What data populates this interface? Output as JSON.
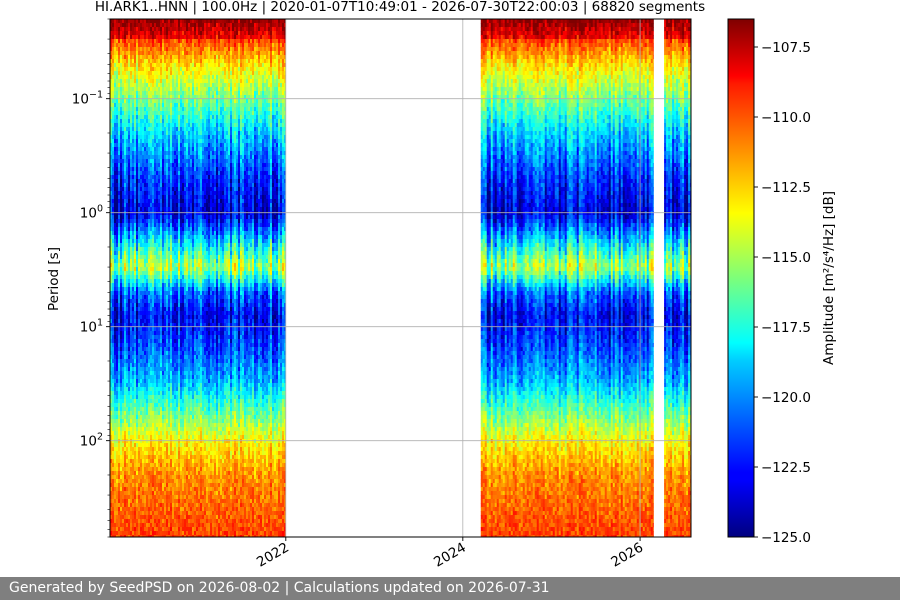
{
  "chart_data": {
    "type": "heatmap",
    "title": "HI.ARK1..HNN | 100.0Hz | 2020-01-07T10:49:01 - 2026-07-30T22:00:03 | 68820 segments",
    "ylabel": "Period [s]",
    "colorbar_label": "Amplitude [m²/s⁴/Hz] [dB]",
    "y_scale": "log",
    "y_inverted": true,
    "ylim": [
      0.02,
      700
    ],
    "xlim": [
      "2020-01-07",
      "2026-07-30"
    ],
    "x_ticks": [
      "2022",
      "2024",
      "2026"
    ],
    "y_ticks": [
      {
        "value": 0.1,
        "base": "10",
        "exp": "−1"
      },
      {
        "value": 1,
        "base": "10",
        "exp": "0"
      },
      {
        "value": 10,
        "base": "10",
        "exp": "1"
      },
      {
        "value": 100,
        "base": "10",
        "exp": "2"
      }
    ],
    "colorbar_range": [
      -125.0,
      -106.5
    ],
    "colorbar_ticks": [
      "−107.5",
      "−110.0",
      "−112.5",
      "−115.0",
      "−117.5",
      "−120.0",
      "−122.5",
      "−125.0"
    ],
    "colormap": "jet",
    "grid": true,
    "data_spans": [
      {
        "start": "2020-01-07",
        "end": "2021-12-31"
      },
      {
        "start": "2024-03-15",
        "end": "2026-02-25"
      },
      {
        "start": "2026-04-10",
        "end": "2026-07-30"
      }
    ],
    "profile_period_s": [
      0.02,
      0.03,
      0.05,
      0.1,
      0.2,
      0.5,
      1,
      2,
      3,
      5,
      8,
      15,
      30,
      60,
      100,
      200,
      700
    ],
    "profile_amplitude_db": [
      -108,
      -110,
      -113,
      -116,
      -119,
      -122,
      -123.5,
      -118,
      -115,
      -121,
      -123,
      -121.5,
      -119.5,
      -116,
      -113.5,
      -111.5,
      -110
    ]
  },
  "footer": {
    "text": "Generated by SeedPSD on 2026-08-02 | Calculations updated on 2026-07-31"
  }
}
